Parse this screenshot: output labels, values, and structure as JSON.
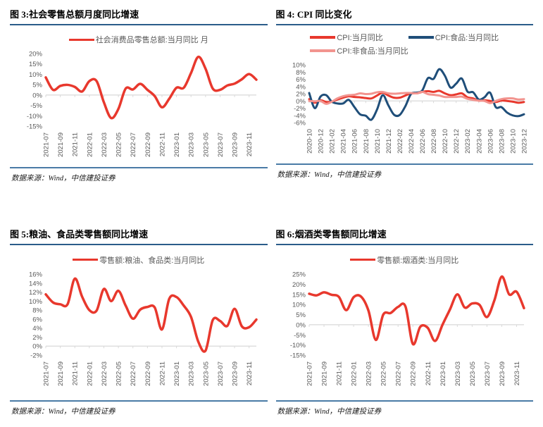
{
  "style": {
    "title_rule_color": "#2b5c8a",
    "source_rule_color": "#4a7ba6",
    "axis_line_color": "#d9d9d9",
    "axis_text_color": "#595959",
    "accent_red": "#e8382d",
    "accent_navy": "#1f4e79",
    "accent_pink": "#f2948f"
  },
  "chart_data": [
    {
      "id": "fig3",
      "type": "line",
      "title": "图 3:社会零售总额月度同比增速",
      "source": "数据来源：Wind，中信建投证券",
      "unit": "%",
      "ylim": [
        -15,
        20
      ],
      "ytick_step": 5,
      "xtick_every": 2,
      "grid": false,
      "legend_position": "top-center",
      "x": [
        "2021-07",
        "2021-08",
        "2021-09",
        "2021-10",
        "2021-11",
        "2021-12",
        "2022-01",
        "2022-02",
        "2022-03",
        "2022-04",
        "2022-05",
        "2022-06",
        "2022-07",
        "2022-08",
        "2022-09",
        "2022-10",
        "2022-11",
        "2022-12",
        "2023-01",
        "2023-02",
        "2023-03",
        "2023-04",
        "2023-05",
        "2023-06",
        "2023-07",
        "2023-08",
        "2023-09",
        "2023-10",
        "2023-11",
        "2023-12"
      ],
      "series": [
        {
          "name": "社会消费品零售总额:当月同比 月",
          "color": "#e8382d",
          "width": 3.5,
          "values": [
            8.5,
            2.5,
            4.4,
            4.9,
            3.9,
            1.7,
            6.7,
            6.7,
            -3.5,
            -11.1,
            -6.7,
            3.1,
            2.7,
            5.4,
            2.5,
            -0.5,
            -5.9,
            -1.8,
            3.5,
            3.5,
            10.6,
            18.4,
            12.7,
            3.1,
            2.5,
            4.6,
            5.5,
            7.6,
            10.1,
            7.4
          ]
        }
      ]
    },
    {
      "id": "fig4",
      "type": "line",
      "title": "图 4: CPI 同比变化",
      "source": "数据来源：Wind，中信建投证券",
      "unit": "%",
      "ylim": [
        -6,
        10
      ],
      "ytick_step": 2,
      "xtick_every": 2,
      "grid": false,
      "legend_position": "top-left-two-rows",
      "legend_rows": [
        [
          0,
          1
        ],
        [
          2
        ]
      ],
      "x": [
        "2020-10",
        "2020-11",
        "2020-12",
        "2021-01",
        "2021-02",
        "2021-03",
        "2021-04",
        "2021-05",
        "2021-06",
        "2021-07",
        "2021-08",
        "2021-09",
        "2021-10",
        "2021-11",
        "2021-12",
        "2022-01",
        "2022-02",
        "2022-03",
        "2022-04",
        "2022-05",
        "2022-06",
        "2022-07",
        "2022-08",
        "2022-09",
        "2022-10",
        "2022-11",
        "2022-12",
        "2023-01",
        "2023-02",
        "2023-03",
        "2023-04",
        "2023-05",
        "2023-06",
        "2023-07",
        "2023-08",
        "2023-09",
        "2023-10",
        "2023-11",
        "2023-12"
      ],
      "series": [
        {
          "name": "CPI:当月同比",
          "color": "#e8382d",
          "width": 3,
          "values": [
            0.5,
            -0.5,
            0.2,
            -0.3,
            -0.2,
            0.4,
            0.9,
            1.3,
            1.1,
            1.0,
            0.8,
            0.7,
            1.5,
            2.3,
            1.5,
            0.9,
            0.9,
            1.5,
            2.1,
            2.1,
            2.5,
            2.7,
            2.5,
            2.8,
            2.1,
            1.6,
            1.8,
            2.1,
            1.0,
            0.7,
            0.1,
            0.2,
            0.0,
            -0.3,
            0.1,
            0.0,
            -0.2,
            -0.5,
            -0.3
          ]
        },
        {
          "name": "CPI:食品:当月同比",
          "color": "#1f4e79",
          "width": 3,
          "values": [
            2.2,
            -2.0,
            1.2,
            1.6,
            -0.2,
            -0.7,
            -0.7,
            0.3,
            -1.7,
            -3.7,
            -4.1,
            -5.2,
            -2.4,
            1.6,
            -1.2,
            -3.8,
            -3.9,
            -1.5,
            1.9,
            2.3,
            2.9,
            6.3,
            6.1,
            8.8,
            7.0,
            3.7,
            4.8,
            6.2,
            2.6,
            2.4,
            0.4,
            1.0,
            2.3,
            -1.7,
            -1.7,
            -3.2,
            -4.0,
            -4.2,
            -3.7
          ]
        },
        {
          "name": "CPI:非食品:当月同比",
          "color": "#f2948f",
          "width": 3,
          "values": [
            0.0,
            -0.1,
            0.0,
            -0.8,
            -0.2,
            0.7,
            1.3,
            1.6,
            1.7,
            2.1,
            1.9,
            2.0,
            2.4,
            2.5,
            2.1,
            2.0,
            2.1,
            2.2,
            2.2,
            2.1,
            2.5,
            1.9,
            1.7,
            1.5,
            1.1,
            1.1,
            1.1,
            1.2,
            0.6,
            0.3,
            0.1,
            0.0,
            -0.6,
            0.0,
            0.5,
            0.7,
            0.7,
            0.4,
            0.5
          ]
        }
      ]
    },
    {
      "id": "fig5",
      "type": "line",
      "title": "图 5:粮油、食品类零售额同比增速",
      "source": "数据来源：Wind，中信建投证券",
      "unit": "%",
      "ylim": [
        -2,
        16
      ],
      "ytick_step": 2,
      "xtick_every": 2,
      "grid": false,
      "legend_position": "top-center",
      "x": [
        "2021-07",
        "2021-08",
        "2021-09",
        "2021-10",
        "2021-11",
        "2021-12",
        "2022-01",
        "2022-02",
        "2022-03",
        "2022-04",
        "2022-05",
        "2022-06",
        "2022-07",
        "2022-08",
        "2022-09",
        "2022-10",
        "2022-11",
        "2022-12",
        "2023-01",
        "2023-02",
        "2023-03",
        "2023-04",
        "2023-05",
        "2023-06",
        "2023-07",
        "2023-08",
        "2023-09",
        "2023-10",
        "2023-11",
        "2023-12"
      ],
      "series": [
        {
          "name": "零售额:粮油、食品类:当月同比",
          "color": "#e8382d",
          "width": 3.5,
          "values": [
            11.5,
            9.7,
            9.3,
            9.3,
            15.0,
            11.0,
            8.0,
            7.9,
            12.7,
            10.0,
            12.3,
            9.0,
            6.1,
            8.1,
            8.7,
            8.6,
            3.7,
            10.5,
            10.9,
            9.0,
            6.5,
            1.0,
            -1.0,
            5.8,
            5.6,
            4.5,
            8.3,
            4.4,
            4.2,
            5.9
          ]
        }
      ]
    },
    {
      "id": "fig6",
      "type": "line",
      "title": "图 6:烟酒类零售额同比增速",
      "source": "数据来源：Wind，中信建投证券",
      "unit": "%",
      "ylim": [
        -15,
        25
      ],
      "ytick_step": 5,
      "xtick_every": 2,
      "grid": false,
      "legend_position": "top-center",
      "x": [
        "2021-07",
        "2021-08",
        "2021-09",
        "2021-10",
        "2021-11",
        "2021-12",
        "2022-01",
        "2022-02",
        "2022-03",
        "2022-04",
        "2022-05",
        "2022-06",
        "2022-07",
        "2022-08",
        "2022-09",
        "2022-10",
        "2022-11",
        "2022-12",
        "2023-01",
        "2023-02",
        "2023-03",
        "2023-04",
        "2023-05",
        "2023-06",
        "2023-07",
        "2023-08",
        "2023-09",
        "2023-10",
        "2023-11",
        "2023-12"
      ],
      "series": [
        {
          "name": "零售额:烟酒类:当月同比",
          "color": "#e8382d",
          "width": 3.5,
          "values": [
            15.3,
            14.5,
            16.0,
            14.8,
            13.8,
            7.2,
            13.6,
            13.9,
            7.0,
            -7.5,
            5.0,
            5.8,
            8.8,
            9.0,
            -9.5,
            -1.0,
            -1.5,
            -8.0,
            0.0,
            7.5,
            15.0,
            8.5,
            10.5,
            9.8,
            3.8,
            12.0,
            23.8,
            15.0,
            16.3,
            8.2
          ]
        }
      ]
    }
  ]
}
